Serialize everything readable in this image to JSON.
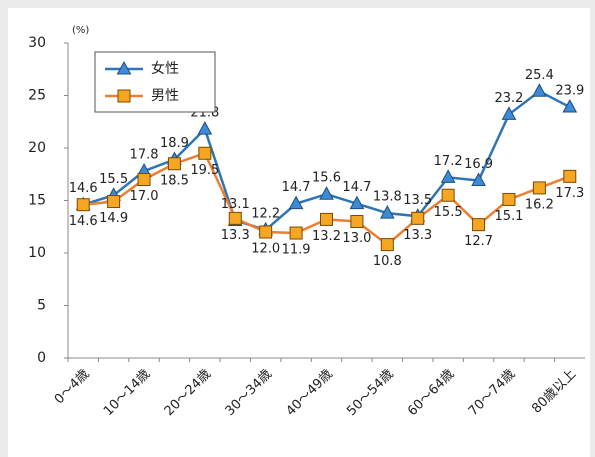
{
  "chart_data": {
    "type": "line",
    "y_unit": "(%)",
    "categories": [
      "0～4歳",
      null,
      "10～14歳",
      null,
      "20～24歳",
      null,
      "30～34歳",
      null,
      "40～49歳",
      null,
      "50～54歳",
      null,
      "60～64歳",
      null,
      "70～74歳",
      null,
      "80歳以上"
    ],
    "series": [
      {
        "name": "女性",
        "color": "#2e75b6",
        "marker": "triangle",
        "values": [
          14.6,
          15.5,
          17.8,
          18.9,
          21.8,
          13.1,
          12.2,
          14.7,
          15.6,
          14.7,
          13.8,
          13.5,
          17.2,
          16.9,
          23.2,
          25.4,
          23.9
        ],
        "value_labels": [
          "14.6",
          "15.5",
          "17.8",
          "18.9",
          "21.8",
          "13.1",
          "12.2",
          "14.7",
          "15.6",
          "14.7",
          "13.8",
          "13.5",
          "17.2",
          "16.9",
          "23.2",
          "25.4",
          "23.9"
        ]
      },
      {
        "name": "男性",
        "color": "#ed7d31",
        "marker": "square",
        "values": [
          14.6,
          14.9,
          17.0,
          18.5,
          19.5,
          13.3,
          12.0,
          11.9,
          13.2,
          13.0,
          10.8,
          13.3,
          15.5,
          12.7,
          15.1,
          16.2,
          17.3
        ],
        "value_labels": [
          "14.6",
          "14.9",
          "17.0",
          "18.5",
          "19.5",
          "13.3",
          "12.0",
          "11.9",
          "13.2",
          "13.0",
          "10.8",
          "13.3",
          "15.5",
          "12.7",
          "15.1",
          "16.2",
          "17.3"
        ]
      }
    ],
    "ylim": [
      0,
      30
    ],
    "yticks": [
      0,
      5,
      10,
      15,
      20,
      25,
      30
    ],
    "grid": false,
    "legend": "upper left"
  }
}
